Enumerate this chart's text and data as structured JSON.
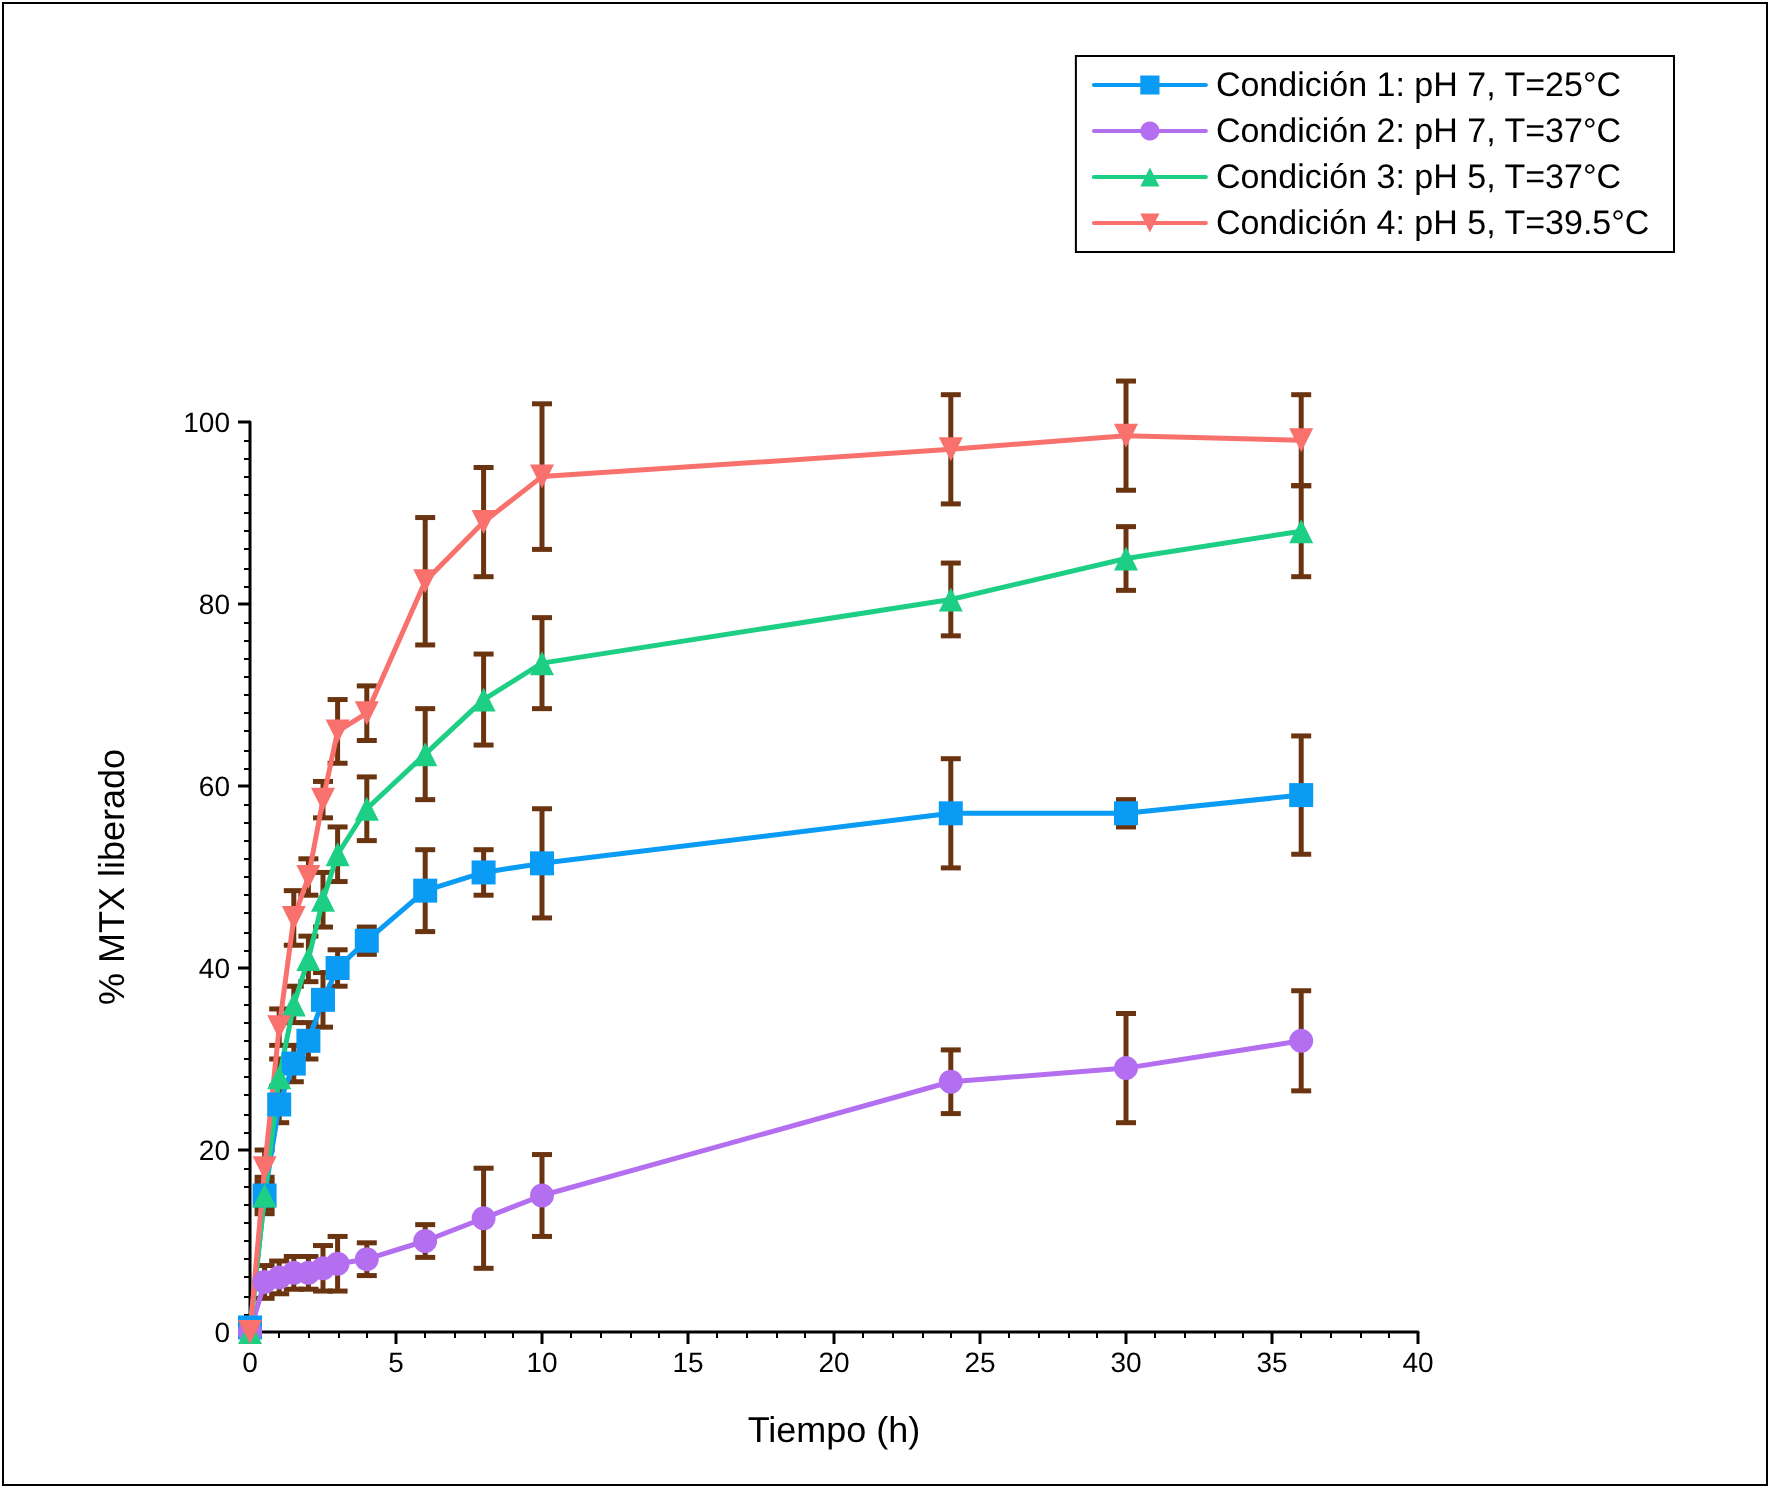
{
  "chart_data": {
    "type": "line",
    "xlabel": "Tiempo (h)",
    "ylabel": "% MTX liberado",
    "xlim": [
      0,
      40
    ],
    "xticks": [
      0,
      5,
      10,
      15,
      20,
      25,
      30,
      35,
      40
    ],
    "ylim": [
      0,
      100
    ],
    "yticks": [
      0,
      20,
      40,
      60,
      80,
      100
    ],
    "grid": false,
    "legend": "top right",
    "line_style": "solid",
    "x": [
      0,
      0.5,
      1,
      1.5,
      2,
      2.5,
      3,
      4,
      6,
      8,
      10,
      24,
      30,
      36
    ],
    "series": [
      {
        "name": "Condición 1: pH 7, T=25°C",
        "color": "#0a9bf5",
        "marker": "square",
        "values": [
          0.5,
          15,
          25,
          29.5,
          32,
          36.5,
          40,
          43,
          48.5,
          50.5,
          51.5,
          57,
          57,
          59
        ],
        "errors": [
          null,
          1.5,
          2,
          2,
          2,
          3,
          2,
          1.5,
          4.5,
          2.5,
          6,
          6,
          1.5,
          6.5
        ]
      },
      {
        "name": "Condición 2: pH 7, T=37°C",
        "color": "#b46ef0",
        "marker": "circle",
        "values": [
          0,
          5.5,
          6,
          6.5,
          6.5,
          7,
          7.5,
          8,
          10,
          12.5,
          15,
          27.5,
          29,
          32
        ],
        "errors": [
          null,
          1.8,
          1.8,
          1.8,
          1.8,
          2.5,
          3,
          1.8,
          1.8,
          5.5,
          4.5,
          3.5,
          6,
          5.5
        ]
      },
      {
        "name": "Condición 3: pH 5, T=37°C",
        "color": "#1dce85",
        "marker": "triangle",
        "values": [
          0,
          15,
          28,
          36,
          41,
          47.5,
          52.5,
          57.5,
          63.5,
          69.5,
          73.5,
          80.5,
          85,
          88
        ],
        "errors": [
          null,
          2,
          2,
          2,
          2.5,
          3,
          3,
          3.5,
          5,
          5,
          5,
          4,
          3.5,
          5
        ]
      },
      {
        "name": "Condición 4: pH 5, T=39.5°C",
        "color": "#f8716d",
        "marker": "triangle-down",
        "values": [
          0,
          18,
          33.5,
          45.5,
          50,
          58.5,
          66,
          68,
          82.5,
          89,
          94,
          97,
          98.5,
          98
        ],
        "errors": [
          null,
          2,
          2,
          3,
          2,
          2,
          3.5,
          3,
          7,
          6,
          8,
          6,
          6,
          5
        ]
      }
    ]
  }
}
